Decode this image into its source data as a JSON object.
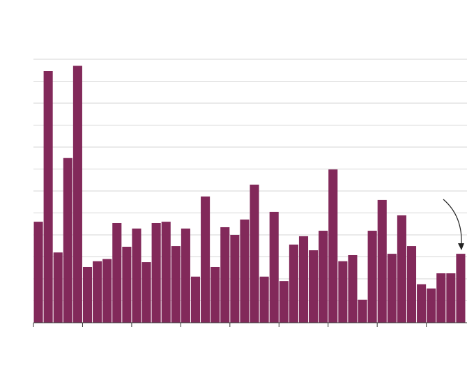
{
  "chart_data": {
    "type": "bar",
    "categories": [
      null,
      null,
      null,
      null,
      null,
      null,
      null,
      null,
      null,
      null,
      null,
      null,
      null,
      null,
      null,
      null,
      null,
      null,
      null,
      null,
      null,
      null,
      null,
      null,
      null,
      null,
      null,
      null,
      null,
      null,
      null,
      null,
      null,
      null,
      null,
      null,
      null,
      null,
      null,
      null,
      null,
      null,
      null,
      null
    ],
    "values": [
      4.6,
      11.46,
      3.2,
      7.5,
      11.7,
      2.54,
      2.8,
      2.9,
      4.54,
      3.46,
      4.29,
      2.76,
      4.54,
      4.6,
      3.49,
      4.29,
      2.1,
      5.75,
      2.54,
      4.35,
      4.0,
      4.7,
      6.29,
      2.1,
      5.05,
      1.9,
      3.56,
      3.94,
      3.3,
      4.19,
      6.98,
      2.8,
      3.08,
      1.05,
      4.19,
      5.59,
      3.14,
      4.89,
      3.49,
      1.75,
      1.56,
      2.25,
      2.25,
      3.14
    ],
    "color": "#82295a",
    "ylim": [
      0,
      12
    ],
    "yticks": [
      1,
      2,
      3,
      4,
      5,
      6,
      7,
      8,
      9,
      10,
      11,
      12
    ],
    "grid": true
  }
}
